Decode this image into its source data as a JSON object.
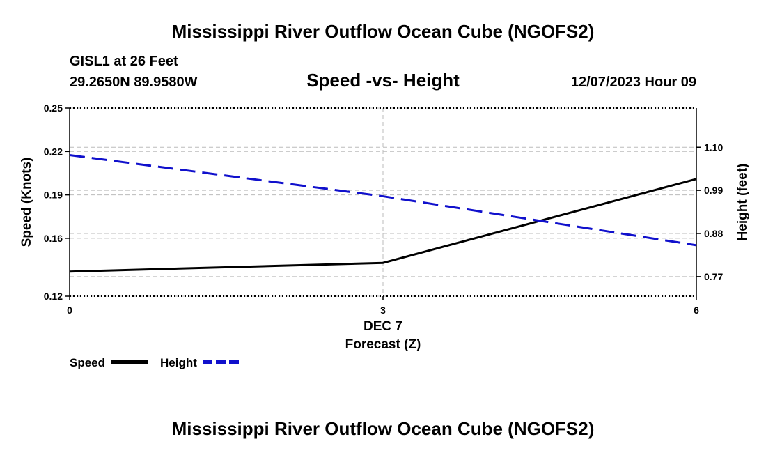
{
  "page": {
    "main_title": "Mississippi River Outflow Ocean Cube (NGOFS2)",
    "footer_title": "Mississippi River Outflow Ocean Cube (NGOFS2)",
    "station": "GISL1 at 26 Feet",
    "coords": "29.2650N  89.9580W",
    "datetime": "12/07/2023 Hour 09"
  },
  "colors": {
    "speed": "#000000",
    "height": "#1010cc",
    "grid": "#bbbbbb"
  },
  "chart_data": {
    "type": "line",
    "title": "Speed -vs- Height",
    "x": [
      0,
      3,
      6
    ],
    "x_ticks": [
      0,
      3,
      6
    ],
    "x_tick_labels": [
      "0",
      "3",
      "6"
    ],
    "x_date_label": "DEC 7",
    "xlabel": "Forecast (Z)",
    "xlim": [
      0,
      6
    ],
    "ylabel_left": "Speed (Knots)",
    "ylim_left": [
      0.12,
      0.25
    ],
    "yticks_left": [
      0.12,
      0.16,
      0.19,
      0.22,
      0.25
    ],
    "ytick_labels_left": [
      "0.12",
      "0.16",
      "0.19",
      "0.22",
      "0.25"
    ],
    "ylabel_right": "Height (feet)",
    "ylim_right": [
      0.72,
      1.2
    ],
    "yticks_right": [
      0.77,
      0.88,
      0.99,
      1.1
    ],
    "ytick_labels_right": [
      "0.77",
      "0.88",
      "0.99",
      "1.10"
    ],
    "grid": true,
    "series": [
      {
        "name": "Speed",
        "axis": "left",
        "style": "solid",
        "values": [
          0.137,
          0.143,
          0.201
        ]
      },
      {
        "name": "Height",
        "axis": "right",
        "style": "dashed",
        "values": [
          1.08,
          0.975,
          0.85
        ]
      }
    ],
    "legend": [
      "Speed",
      "Height"
    ],
    "legend_position": "bottom-left"
  }
}
